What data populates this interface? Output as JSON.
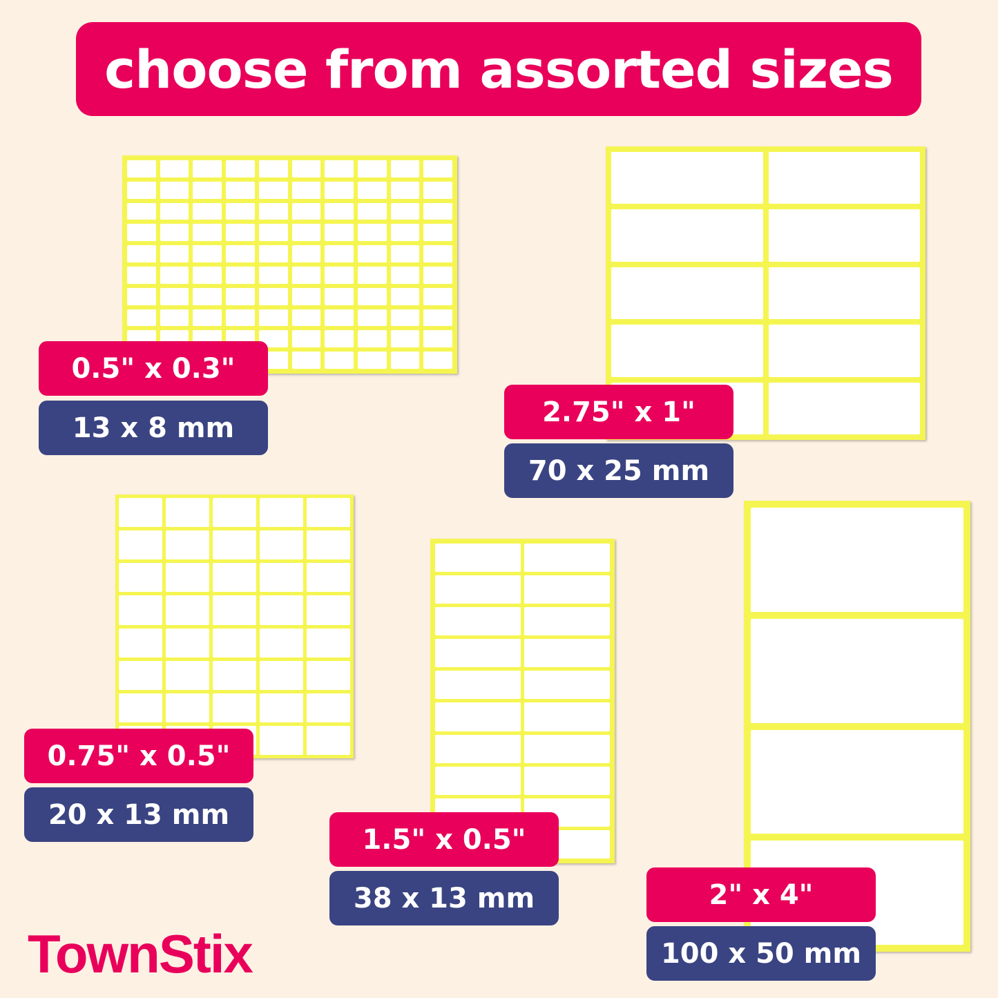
{
  "banner": {
    "title": "choose from assorted sizes"
  },
  "colors": {
    "accent": "#e8005a",
    "secondary": "#3a4482",
    "sheet": "#f5f552",
    "background": "#fdf1e4"
  },
  "sheets": [
    {
      "inches": "0.5\" x 0.3\"",
      "mm": "13 x 8 mm",
      "cols": 10,
      "rows": 10
    },
    {
      "inches": "2.75\" x 1\"",
      "mm": "70 x 25 mm",
      "cols": 2,
      "rows": 5
    },
    {
      "inches": "0.75\" x 0.5\"",
      "mm": "20 x 13 mm",
      "cols": 5,
      "rows": 8
    },
    {
      "inches": "1.5\" x 0.5\"",
      "mm": "38 x 13 mm",
      "cols": 2,
      "rows": 10
    },
    {
      "inches": "2\" x 4\"",
      "mm": "100 x 50 mm",
      "cols": 1,
      "rows": 4
    }
  ],
  "brand": {
    "logo": "TownStix"
  }
}
